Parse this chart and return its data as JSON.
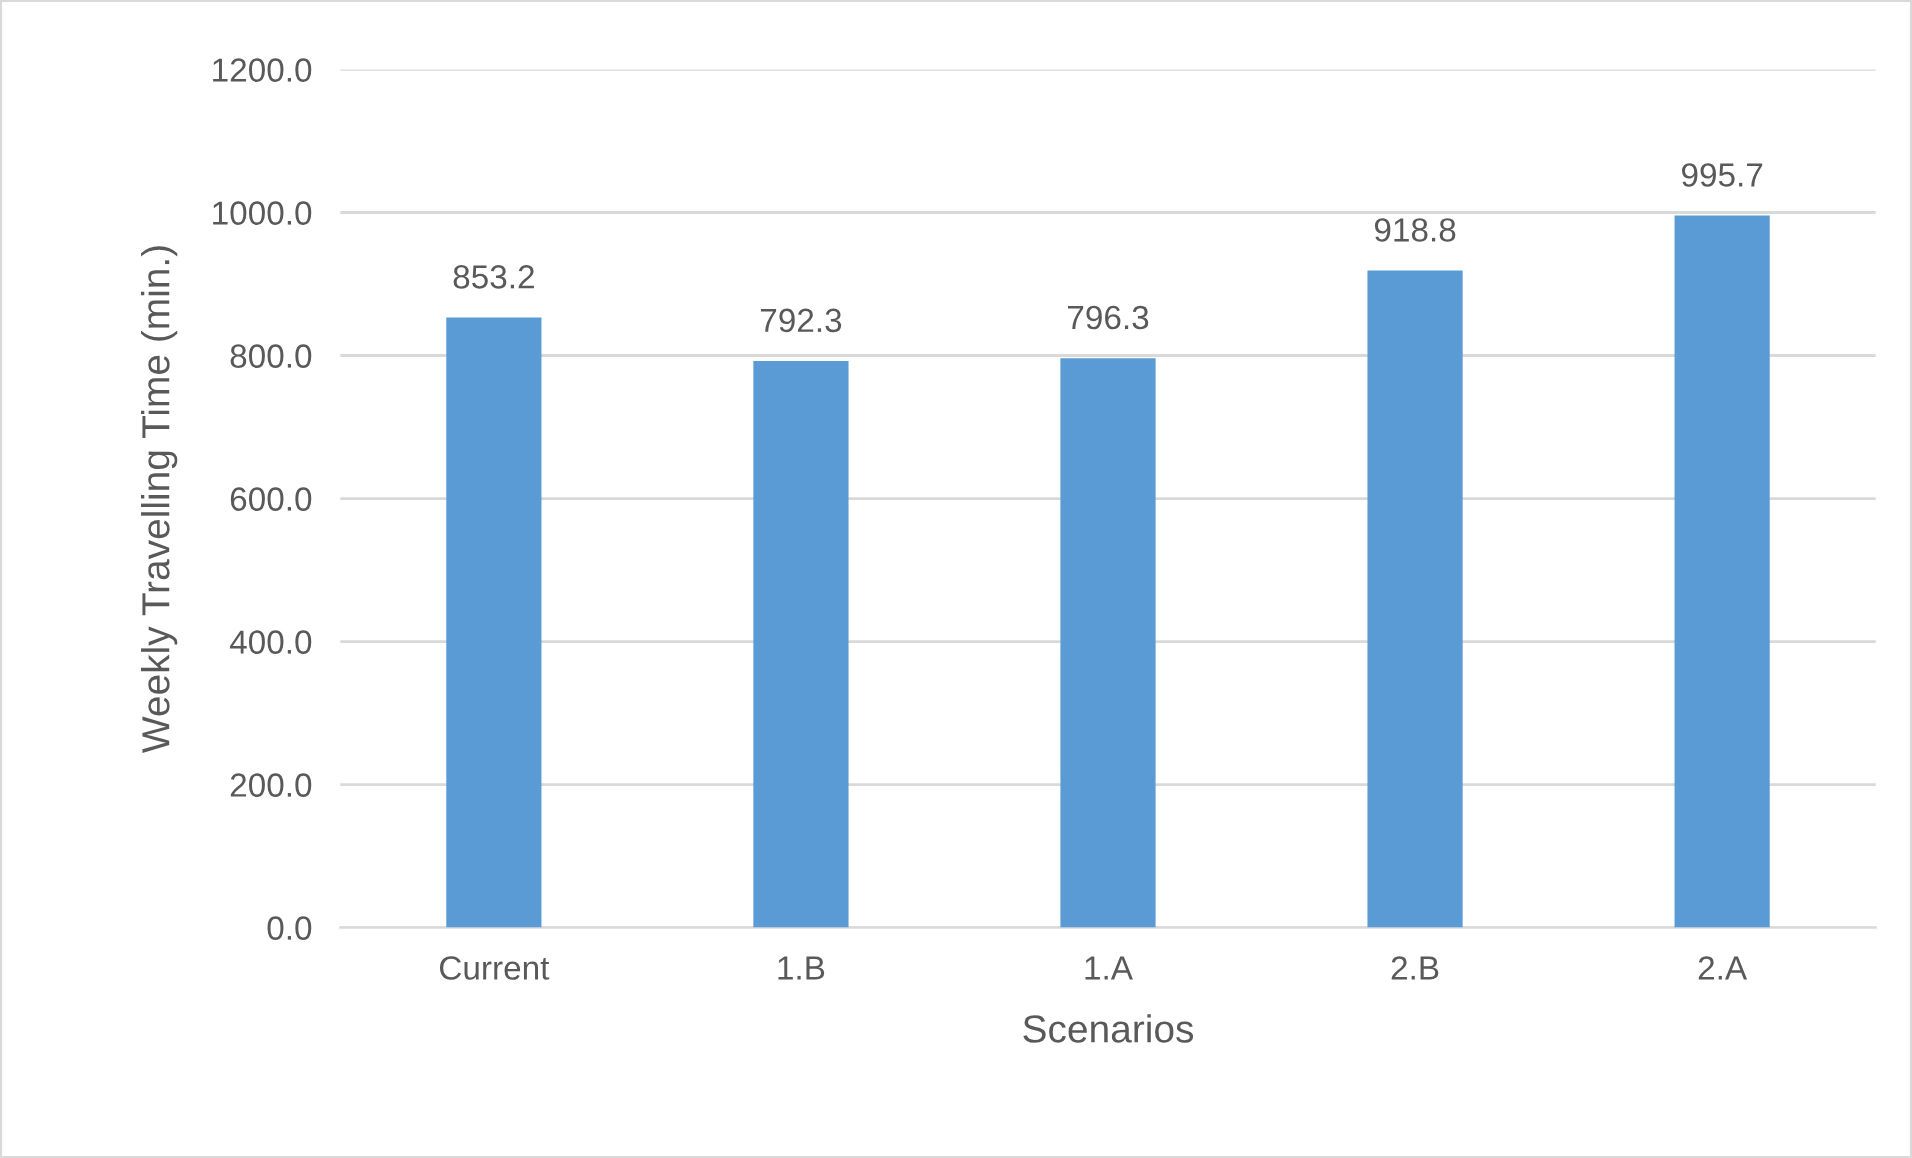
{
  "chart_data": {
    "type": "bar",
    "xlabel": "Scenarios",
    "ylabel": "Weekly Travelling Time (min.)",
    "categories": [
      "Current",
      "1.B",
      "1.A",
      "2.B",
      "2.A"
    ],
    "values": [
      853.2,
      792.3,
      796.3,
      918.8,
      995.7
    ],
    "color": "#5b9bd5",
    "ylim": [
      0,
      1200
    ],
    "yticks": [
      {
        "value": 0,
        "label": "0.0"
      },
      {
        "value": 200,
        "label": "200.0"
      },
      {
        "value": 400,
        "label": "400.0"
      },
      {
        "value": 600,
        "label": "600.0"
      },
      {
        "value": 800,
        "label": "800.0"
      },
      {
        "value": 1000,
        "label": "1000.0"
      },
      {
        "value": 1200,
        "label": "1200.0"
      }
    ],
    "grid": "y",
    "data_labels": true
  }
}
